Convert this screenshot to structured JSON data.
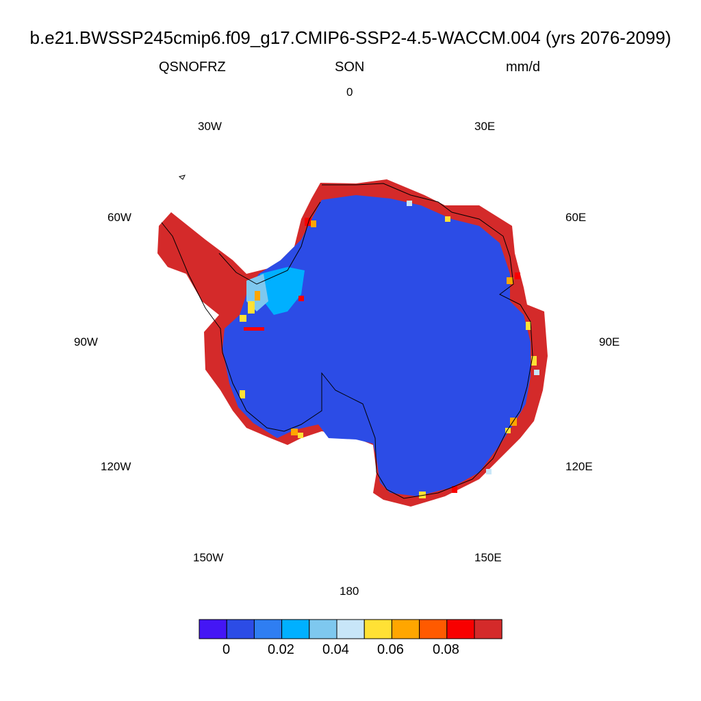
{
  "title": "b.e21.BWSSP245cmip6.f09_g17.CMIP6-SSP2-4.5-WACCM.004 (yrs 2076-2099)",
  "left_string": "QSNOFRZ",
  "center_string": "SON",
  "right_string": "mm/d",
  "longitude_labels": {
    "lon_0": "0",
    "lon_30e": "30E",
    "lon_60e": "60E",
    "lon_90e": "90E",
    "lon_120e": "120E",
    "lon_150e": "150E",
    "lon_180": "180",
    "lon_150w": "150W",
    "lon_120w": "120W",
    "lon_90w": "90W",
    "lon_60w": "60W",
    "lon_30w": "30W"
  },
  "colorbar": {
    "colors": [
      "#4416f5",
      "#2c4ce6",
      "#2f7ef2",
      "#00b0ff",
      "#7ec8ef",
      "#c8e6f8",
      "#ffe135",
      "#ffa600",
      "#ff5a00",
      "#f80000",
      "#d42a2a"
    ],
    "labels": [
      "0",
      "0.02",
      "0.04",
      "0.06",
      "0.08"
    ]
  },
  "colors": {
    "ice_interior": "#2c4ce6",
    "coastal_high": "#d42a2a",
    "coastline": "#000000"
  }
}
